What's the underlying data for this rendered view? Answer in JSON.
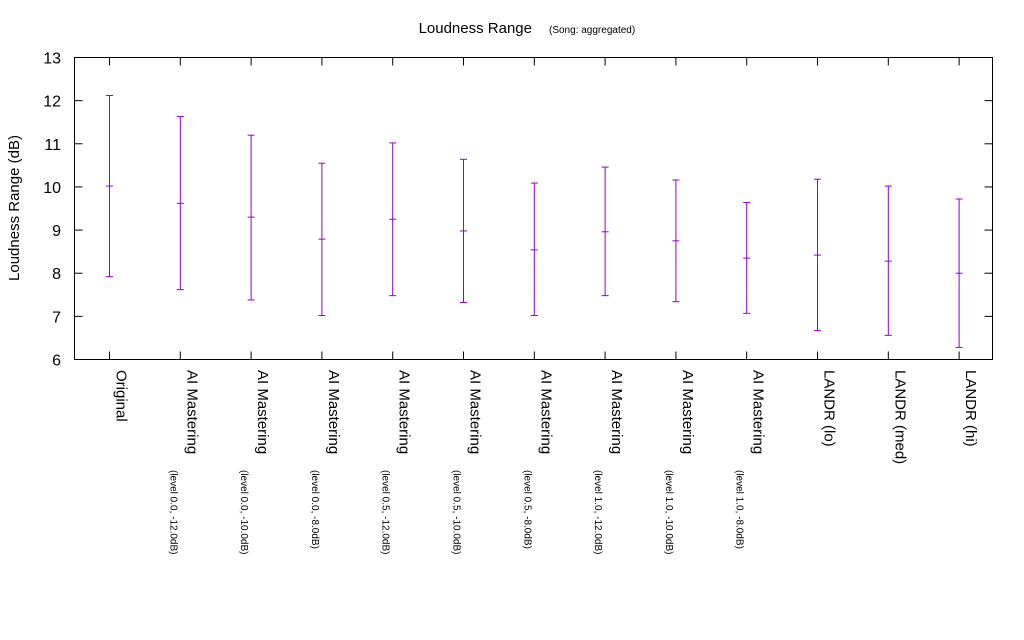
{
  "chart_data": {
    "type": "errorbar",
    "title": "Loudness Range",
    "subtitle": "(Song: aggregated)",
    "xlabel": "",
    "ylabel": "Loudness Range (dB)",
    "ylim": [
      6,
      13
    ],
    "yticks": [
      6,
      7,
      8,
      9,
      10,
      11,
      12,
      13
    ],
    "grid": false,
    "color": "#9400d3",
    "categories": [
      {
        "label": "Original",
        "sub": ""
      },
      {
        "label": "AI Mastering",
        "sub": "(level 0.0, -12.0dB)"
      },
      {
        "label": "AI Mastering",
        "sub": "(level 0.0, -10.0dB)"
      },
      {
        "label": "AI Mastering",
        "sub": "(level 0.0, -8.0dB)"
      },
      {
        "label": "AI Mastering",
        "sub": "(level 0.5, -12.0dB)"
      },
      {
        "label": "AI Mastering",
        "sub": "(level 0.5, -10.0dB)"
      },
      {
        "label": "AI Mastering",
        "sub": "(level 0.5, -8.0dB)"
      },
      {
        "label": "AI Mastering",
        "sub": "(level 1.0, -12.0dB)"
      },
      {
        "label": "AI Mastering",
        "sub": "(level 1.0, -10.0dB)"
      },
      {
        "label": "AI Mastering",
        "sub": "(level 1.0, -8.0dB)"
      },
      {
        "label": "LANDR (lo)",
        "sub": ""
      },
      {
        "label": "LANDR (med)",
        "sub": ""
      },
      {
        "label": "LANDR (hi)",
        "sub": ""
      }
    ],
    "values": [
      {
        "low": 7.92,
        "mid": 10.02,
        "high": 12.12
      },
      {
        "low": 7.62,
        "mid": 9.62,
        "high": 11.63
      },
      {
        "low": 7.38,
        "mid": 9.3,
        "high": 11.2
      },
      {
        "low": 7.02,
        "mid": 8.79,
        "high": 10.55
      },
      {
        "low": 7.48,
        "mid": 9.25,
        "high": 11.02
      },
      {
        "low": 7.32,
        "mid": 8.98,
        "high": 10.64
      },
      {
        "low": 7.02,
        "mid": 8.54,
        "high": 10.09
      },
      {
        "low": 7.48,
        "mid": 8.96,
        "high": 10.46
      },
      {
        "low": 7.34,
        "mid": 8.75,
        "high": 10.16
      },
      {
        "low": 7.07,
        "mid": 8.35,
        "high": 9.64
      },
      {
        "low": 6.67,
        "mid": 8.42,
        "high": 10.18
      },
      {
        "low": 6.56,
        "mid": 8.28,
        "high": 10.02
      },
      {
        "low": 6.28,
        "mid": 8.0,
        "high": 9.72
      }
    ]
  }
}
